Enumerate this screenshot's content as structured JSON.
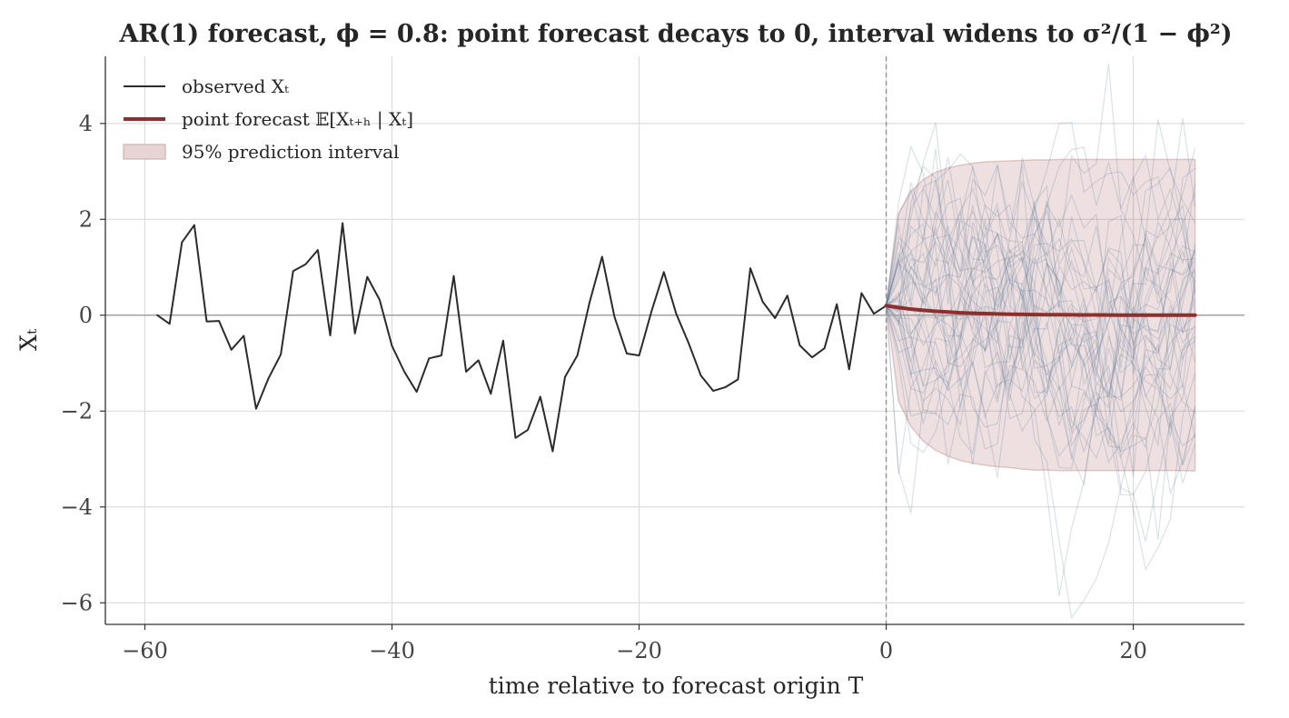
{
  "chart_data": {
    "type": "line",
    "title": "AR(1) forecast, ϕ = 0.8: point forecast decays to 0, interval widens to σ²/(1 − ϕ²)",
    "xlabel": "time relative to forecast origin T",
    "ylabel": "Xₜ",
    "xlim": [
      -63.2,
      29.0
    ],
    "ylim": [
      -6.45,
      5.4
    ],
    "x_ticks": [
      -60,
      -40,
      -20,
      0,
      20
    ],
    "x_tick_labels": [
      "−60",
      "−40",
      "−20",
      "0",
      "20"
    ],
    "y_ticks": [
      -6,
      -4,
      -2,
      0,
      2,
      4
    ],
    "y_tick_labels": [
      "−6",
      "−4",
      "−2",
      "0",
      "2",
      "4"
    ],
    "grid": true,
    "legend_position": "top-left",
    "legend": [
      {
        "label": "observed Xₜ",
        "kind": "line",
        "color": "#2b2b2b"
      },
      {
        "label": "point forecast 𝔼[Xₜ₊ₕ | Xₜ]",
        "kind": "line",
        "color": "#8b2f2f"
      },
      {
        "label": "95% prediction interval",
        "kind": "patch",
        "color": "#e9d4d4"
      }
    ],
    "colors": {
      "observed": "#2b2b2b",
      "forecast": "#8b2f2f",
      "band_fill": "#8b2f2f",
      "sample_paths": "#5a7896",
      "grid": "#dcdcdc",
      "zero_line": "#9a9a9a",
      "origin_line": "#8c8c8c"
    },
    "series": [
      {
        "name": "observed Xₜ",
        "x": [
          -59,
          -58,
          -57,
          -56,
          -55,
          -54,
          -53,
          -52,
          -51,
          -50,
          -49,
          -48,
          -47,
          -46,
          -45,
          -44,
          -43,
          -42,
          -41,
          -40,
          -39,
          -38,
          -37,
          -36,
          -35,
          -34,
          -33,
          -32,
          -31,
          -30,
          -29,
          -28,
          -27,
          -26,
          -25,
          -24,
          -23,
          -22,
          -21,
          -20,
          -19,
          -18,
          -17,
          -16,
          -15,
          -14,
          -13,
          -12,
          -11,
          -10,
          -9,
          -8,
          -7,
          -6,
          -5,
          -4,
          -3,
          -2,
          -1,
          0
        ],
        "y": [
          0.0,
          -0.18,
          1.52,
          1.88,
          -0.13,
          -0.12,
          -0.72,
          -0.43,
          -1.95,
          -1.32,
          -0.82,
          0.92,
          1.06,
          1.36,
          -0.42,
          1.92,
          -0.38,
          0.8,
          0.32,
          -0.64,
          -1.18,
          -1.6,
          -0.9,
          -0.84,
          0.82,
          -1.18,
          -0.94,
          -1.64,
          -0.53,
          -2.56,
          -2.39,
          -1.7,
          -2.84,
          -1.29,
          -0.84,
          0.28,
          1.22,
          -0.03,
          -0.8,
          -0.84,
          0.08,
          0.9,
          0.03,
          -0.58,
          -1.26,
          -1.58,
          -1.5,
          -1.34,
          0.98,
          0.28,
          -0.06,
          0.41,
          -0.63,
          -0.88,
          -0.69,
          0.23,
          -1.13,
          0.46,
          0.03,
          0.2
        ]
      },
      {
        "name": "point forecast 𝔼[Xₜ₊ₕ | Xₜ]",
        "x": [
          0,
          1,
          2,
          3,
          4,
          5,
          6,
          7,
          8,
          9,
          10,
          11,
          12,
          13,
          14,
          15,
          16,
          17,
          18,
          19,
          20,
          21,
          22,
          23,
          24,
          25
        ],
        "y": [
          0.2,
          0.16,
          0.128,
          0.102,
          0.082,
          0.066,
          0.052,
          0.042,
          0.034,
          0.027,
          0.021,
          0.017,
          0.014,
          0.011,
          0.009,
          0.007,
          0.006,
          0.005,
          0.004,
          0.003,
          0.002,
          0.002,
          0.001,
          0.001,
          0.001,
          0.001
        ]
      }
    ],
    "interval": {
      "name": "95% prediction interval",
      "x": [
        0,
        1,
        2,
        3,
        4,
        5,
        6,
        7,
        8,
        9,
        10,
        11,
        12,
        13,
        14,
        15,
        16,
        17,
        18,
        19,
        20,
        21,
        22,
        23,
        24,
        25
      ],
      "upper": [
        0.2,
        2.12,
        2.58,
        2.83,
        2.98,
        3.07,
        3.13,
        3.17,
        3.2,
        3.21,
        3.22,
        3.23,
        3.24,
        3.24,
        3.25,
        3.25,
        3.25,
        3.25,
        3.25,
        3.25,
        3.25,
        3.25,
        3.25,
        3.25,
        3.25,
        3.25
      ],
      "lower": [
        0.2,
        -1.8,
        -2.32,
        -2.63,
        -2.82,
        -2.94,
        -3.03,
        -3.09,
        -3.13,
        -3.16,
        -3.18,
        -3.21,
        -3.23,
        -3.23,
        -3.24,
        -3.24,
        -3.24,
        -3.24,
        -3.24,
        -3.24,
        -3.24,
        -3.24,
        -3.24,
        -3.24,
        -3.24,
        -3.25
      ]
    },
    "simulated_paths": {
      "count": 40,
      "x_range": [
        0,
        25
      ],
      "phi": 0.8,
      "start": 0.2,
      "sigma": 1.0
    },
    "vertical_line_x": 0
  }
}
